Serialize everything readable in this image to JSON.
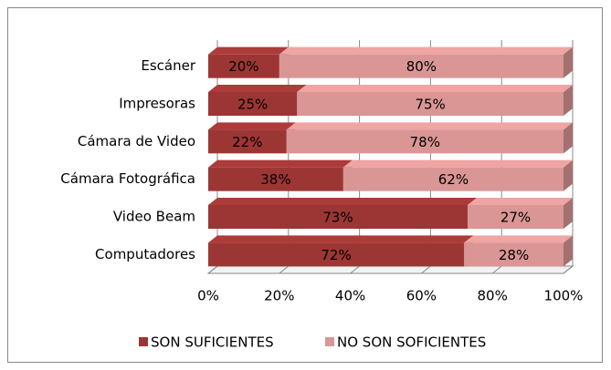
{
  "chart_data": {
    "type": "bar",
    "orientation": "horizontal",
    "stacked": true,
    "categories": [
      "Escáner",
      "Impresoras",
      "Cámara de Video",
      "Cámara Fotográfica",
      "Video Beam",
      "Computadores"
    ],
    "series": [
      {
        "name": "SON SUFICIENTES",
        "color": "#9c3634",
        "values": [
          20,
          25,
          22,
          38,
          73,
          72
        ],
        "value_labels": [
          "20%",
          "25%",
          "22%",
          "38%",
          "73%",
          "72%"
        ]
      },
      {
        "name": "NO SON SOFICIENTES",
        "color": "#d99694",
        "values": [
          80,
          75,
          78,
          62,
          27,
          28
        ],
        "value_labels": [
          "80%",
          "75%",
          "78%",
          "62%",
          "27%",
          "28%"
        ]
      }
    ],
    "xlim": [
      0,
      100
    ],
    "xticks": [
      {
        "value": 0,
        "label": "0%"
      },
      {
        "value": 20,
        "label": "20%"
      },
      {
        "value": 40,
        "label": "40%"
      },
      {
        "value": 60,
        "label": "60%"
      },
      {
        "value": 80,
        "label": "80%"
      },
      {
        "value": 100,
        "label": "100%"
      }
    ],
    "grid": true,
    "legend": "bottom"
  }
}
